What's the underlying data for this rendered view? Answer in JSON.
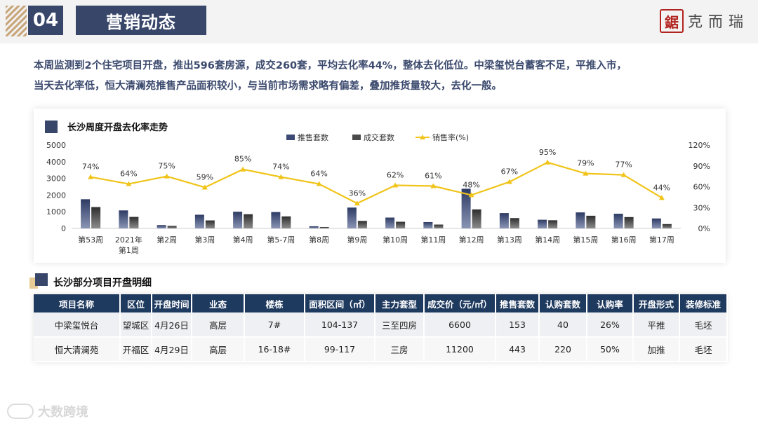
{
  "header": {
    "section_number": "04",
    "section_title": "营销动态",
    "logo_seal": "鋸",
    "logo_text": "克而瑞"
  },
  "summary": {
    "line1": "本周监测到2个住宅项目开盘，推出596套房源，成交260套，平均去化率44%，整体去化低位。中梁玺悦台蓄客不足，平推入市，",
    "line2": "当天去化率低，恒大清澜苑推售产品面积较小，与当前市场需求略有偏差，叠加推货量较大，去化一般。"
  },
  "chart_data": {
    "type": "bar",
    "title": "长沙周度开盘去化率走势",
    "categories": [
      "第53周",
      "2021年\n第1周",
      "第2周",
      "第3周",
      "第4周",
      "第5-7周",
      "第8周",
      "第9周",
      "第10周",
      "第11周",
      "第12周",
      "第13周",
      "第14周",
      "第15周",
      "第16周",
      "第17周"
    ],
    "series": [
      {
        "name": "推售套数",
        "type": "bar",
        "axis": "left",
        "color": "#3c4a75",
        "values": [
          1750,
          1080,
          200,
          820,
          1000,
          980,
          130,
          1250,
          650,
          380,
          2380,
          920,
          520,
          960,
          880,
          596
        ]
      },
      {
        "name": "成交套数",
        "type": "bar",
        "axis": "left",
        "color": "#4a4a4a",
        "values": [
          1280,
          690,
          150,
          480,
          850,
          720,
          85,
          450,
          400,
          230,
          1140,
          620,
          490,
          760,
          680,
          260
        ]
      },
      {
        "name": "销售率(%)",
        "type": "line",
        "axis": "right",
        "color": "#f0c419",
        "values": [
          74,
          64,
          75,
          59,
          85,
          74,
          64,
          36,
          62,
          61,
          48,
          67,
          95,
          79,
          77,
          44
        ],
        "labels": [
          "74%",
          "64%",
          "75%",
          "59%",
          "85%",
          "74%",
          "64%",
          "36%",
          "62%",
          "61%",
          "48%",
          "67%",
          "95%",
          "79%",
          "77%",
          "44%"
        ]
      }
    ],
    "ylim_left": [
      0,
      5000
    ],
    "yticks_left": [
      "0",
      "1000",
      "2000",
      "3000",
      "4000",
      "5000"
    ],
    "ylim_right": [
      0,
      120
    ],
    "yticks_right": [
      "0%",
      "30%",
      "60%",
      "90%",
      "120%"
    ],
    "legend_position": "top",
    "grid": false
  },
  "table": {
    "title": "长沙部分项目开盘明细",
    "columns": [
      "项目名称",
      "区位",
      "开盘时间",
      "业态",
      "楼栋",
      "面积区间（㎡）",
      "主力套型",
      "成交价（元/㎡）",
      "推售套数",
      "认购套数",
      "认购率",
      "开盘形式",
      "装修标准"
    ],
    "rows": [
      [
        "中梁玺悦台",
        "望城区",
        "4月26日",
        "高层",
        "7#",
        "104-137",
        "三至四房",
        "6600",
        "153",
        "40",
        "26%",
        "平推",
        "毛坯"
      ],
      [
        "恒大清澜苑",
        "开福区",
        "4月29日",
        "高层",
        "16-18#",
        "99-117",
        "三房",
        "11200",
        "443",
        "220",
        "50%",
        "加推",
        "毛坯"
      ]
    ]
  },
  "watermark": "大数跨境"
}
